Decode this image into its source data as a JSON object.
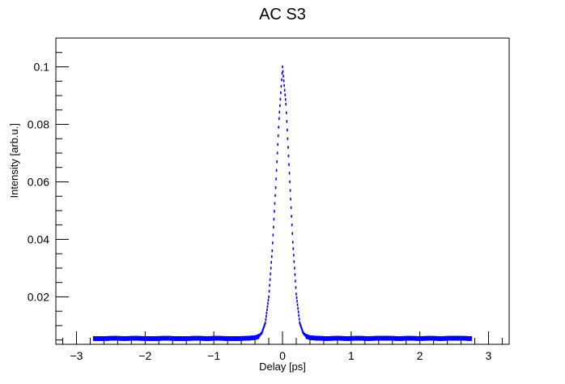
{
  "chart_data": {
    "type": "scatter",
    "title": "AC S3",
    "xlabel": "Delay [ps]",
    "ylabel": "Intensity [arb.u.]",
    "xlim": [
      -3.3,
      3.3
    ],
    "ylim": [
      0.0035,
      0.11
    ],
    "x_ticks": [
      -3,
      -2,
      -1,
      0,
      1,
      2,
      3
    ],
    "x_tick_labels": [
      "−3",
      "−2",
      "−1",
      "0",
      "1",
      "2",
      "3"
    ],
    "y_ticks": [
      0.02,
      0.04,
      0.06,
      0.08,
      0.1
    ],
    "y_tick_labels": [
      "0.02",
      "0.04",
      "0.06",
      "0.08",
      "0.1"
    ],
    "grid": false,
    "legend": "none",
    "series": [
      {
        "color": "#0000ff",
        "marker": "error-bars",
        "x": [
          -2.75,
          -2.6,
          -2.45,
          -2.3,
          -2.15,
          -2.0,
          -1.85,
          -1.7,
          -1.55,
          -1.4,
          -1.25,
          -1.1,
          -0.95,
          -0.8,
          -0.65,
          -0.5,
          -0.4,
          -0.35,
          -0.3,
          -0.25,
          -0.2,
          -0.15,
          -0.1,
          -0.05,
          0.0,
          0.05,
          0.1,
          0.15,
          0.2,
          0.25,
          0.3,
          0.35,
          0.4,
          0.5,
          0.65,
          0.8,
          0.95,
          1.1,
          1.25,
          1.4,
          1.55,
          1.7,
          1.85,
          2.0,
          2.15,
          2.3,
          2.45,
          2.6,
          2.75
        ],
        "y": [
          0.0055,
          0.0055,
          0.0056,
          0.0055,
          0.0056,
          0.0055,
          0.0055,
          0.0056,
          0.0055,
          0.0055,
          0.0056,
          0.0055,
          0.0056,
          0.0055,
          0.0055,
          0.0056,
          0.0058,
          0.0062,
          0.0075,
          0.011,
          0.02,
          0.036,
          0.058,
          0.082,
          0.1,
          0.087,
          0.063,
          0.039,
          0.021,
          0.011,
          0.0075,
          0.0062,
          0.0058,
          0.0056,
          0.0055,
          0.0056,
          0.0055,
          0.0056,
          0.0055,
          0.0056,
          0.0056,
          0.0055,
          0.0056,
          0.0055,
          0.0056,
          0.0055,
          0.0056,
          0.0056,
          0.0055
        ],
        "y_error": 0.0008
      }
    ]
  }
}
